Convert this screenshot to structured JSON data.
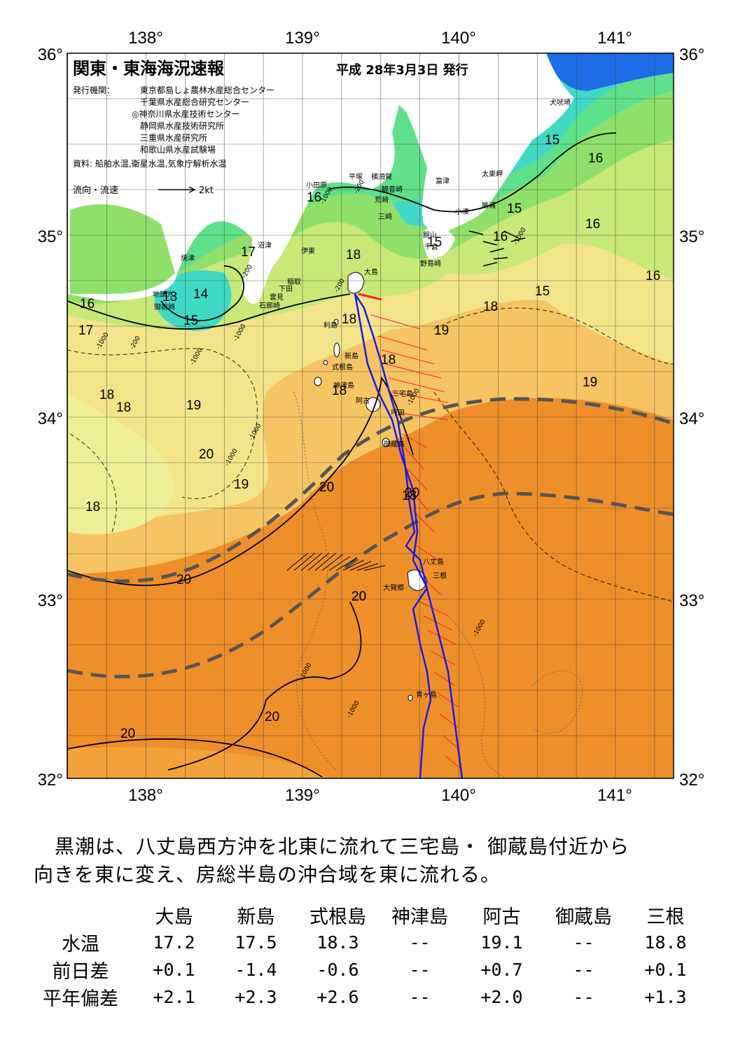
{
  "header": {
    "title": "関東・東海海況速報",
    "issue_date": "平成 28年3月3日 発行",
    "issuer_label": "発行機関：",
    "issuers": [
      "東京都島しょ農林水産総合センター",
      "千葉県水産総合研究センター",
      "◎神奈川県水産技術センター",
      "静岡県水産技術研究所",
      "三重県水産研究所",
      "和歌山県水産試験場"
    ],
    "source": "資料: 船舶水温,衛星水温,気象庁解析水温",
    "legend_current": "流向・流速",
    "legend_speed": "2kt"
  },
  "axes": {
    "lon_ticks": [
      "138°",
      "139°",
      "140°",
      "141°"
    ],
    "lat_ticks": [
      "36°",
      "35°",
      "34°",
      "33°",
      "32°"
    ]
  },
  "colors": {
    "t14": "#3fd9c6",
    "t15": "#5fe08a",
    "t16": "#8fe06a",
    "t17": "#c8e878",
    "t18": "#f3e48a",
    "t19": "#f6c463",
    "t20": "#f3a23a",
    "t21": "#ee8f2a",
    "cold": "#1e6de6",
    "land": "#ffffff",
    "track": "#1a1ae6",
    "current": "#ff2020",
    "kuroshio": "#555555"
  },
  "places": [
    {
      "name": "犬吠埼"
    },
    {
      "name": "太東岬"
    },
    {
      "name": "勝浦"
    },
    {
      "name": "小湊"
    },
    {
      "name": "富津"
    },
    {
      "name": "横須賀"
    },
    {
      "name": "平塚"
    },
    {
      "name": "観音崎"
    },
    {
      "name": "荒崎"
    },
    {
      "name": "三崎"
    },
    {
      "name": "小田原"
    },
    {
      "name": "館山"
    },
    {
      "name": "千倉"
    },
    {
      "name": "野島崎"
    },
    {
      "name": "沼津"
    },
    {
      "name": "伊東"
    },
    {
      "name": "稲取"
    },
    {
      "name": "下田"
    },
    {
      "name": "雲見"
    },
    {
      "name": "石廊崎"
    },
    {
      "name": "焼津"
    },
    {
      "name": "地頭方"
    },
    {
      "name": "御前崎"
    },
    {
      "name": "大島"
    },
    {
      "name": "利島"
    },
    {
      "name": "新島"
    },
    {
      "name": "式根島"
    },
    {
      "name": "神津島"
    },
    {
      "name": "三宅島"
    },
    {
      "name": "阿古"
    },
    {
      "name": "坪田"
    },
    {
      "name": "御蔵島"
    },
    {
      "name": "八丈島"
    },
    {
      "name": "三根"
    },
    {
      "name": "大賀郷"
    },
    {
      "name": "青ヶ島"
    }
  ],
  "isotherm_labels": [
    "15",
    "16",
    "15",
    "16",
    "16",
    "15",
    "16",
    "15",
    "16",
    "17",
    "13",
    "14",
    "15",
    "16",
    "17",
    "18",
    "18",
    "18",
    "19",
    "18",
    "18",
    "19",
    "20",
    "19",
    "18",
    "18",
    "18",
    "18",
    "19",
    "20",
    "20",
    "20",
    "20",
    "20",
    "20",
    "20",
    "20"
  ],
  "depth_labels": [
    "-200",
    "-1000",
    "-200",
    "-200",
    "-1000",
    "-1000",
    "-200",
    "-1000",
    "-1000",
    "-1000",
    "-1000",
    "-1000",
    "-1000",
    "-1000",
    "-1000"
  ],
  "summary": {
    "line1": "黒潮は、八丈島西方沖を北東に流れて三宅島・ 御蔵島付近から",
    "line2": "向きを東に変え、房総半島の沖合域を東に流れる。"
  },
  "table": {
    "columns": [
      "大島",
      "新島",
      "式根島",
      "神津島",
      "阿古",
      "御蔵島",
      "三根"
    ],
    "rows": [
      {
        "label": "水温",
        "values": [
          "17.2",
          "17.5",
          "18.3",
          "--",
          "19.1",
          "--",
          "18.8"
        ]
      },
      {
        "label": "前日差",
        "values": [
          "+0.1",
          "-1.4",
          "-0.6",
          "--",
          "+0.7",
          "--",
          "+0.1"
        ]
      },
      {
        "label": "平年偏差",
        "values": [
          "+2.1",
          "+2.3",
          "+2.6",
          "--",
          "+2.0",
          "--",
          "+1.3"
        ]
      }
    ]
  }
}
